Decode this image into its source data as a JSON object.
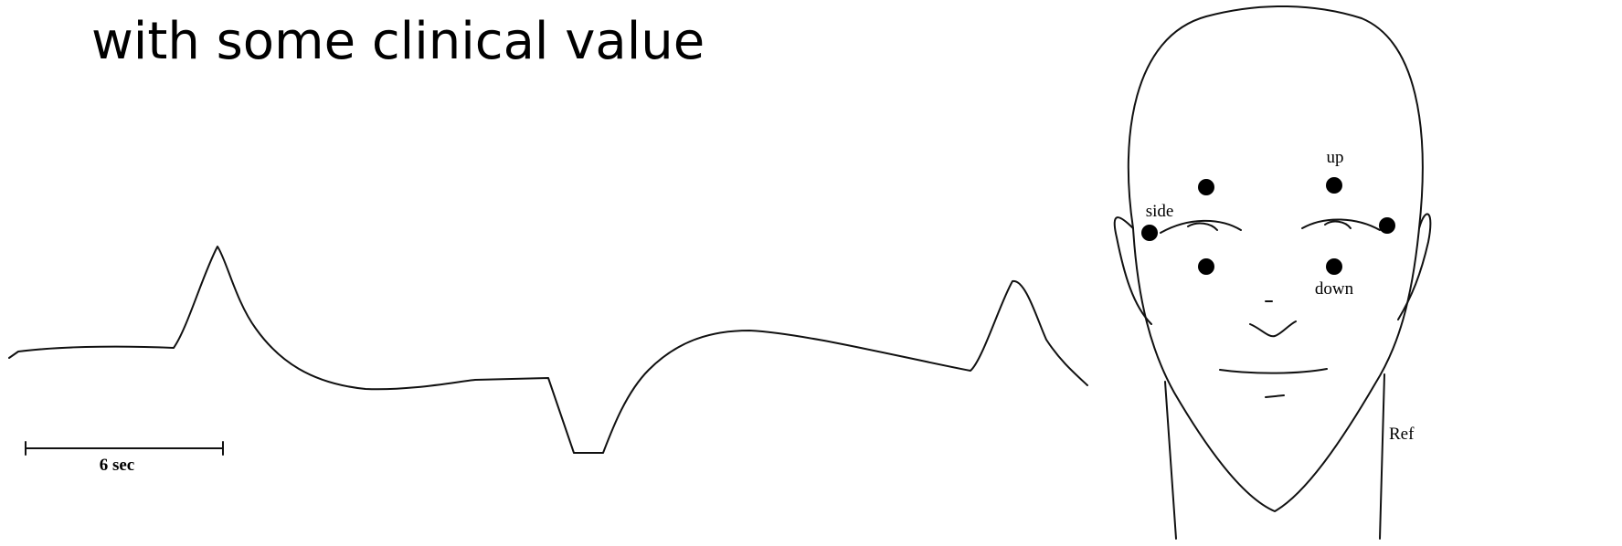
{
  "title": "with some clinical value",
  "waveform": {
    "scale_bar_label": "6 sec"
  },
  "face": {
    "labels": {
      "up": "up",
      "side": "side",
      "down": "down",
      "ref": "Ref"
    }
  }
}
